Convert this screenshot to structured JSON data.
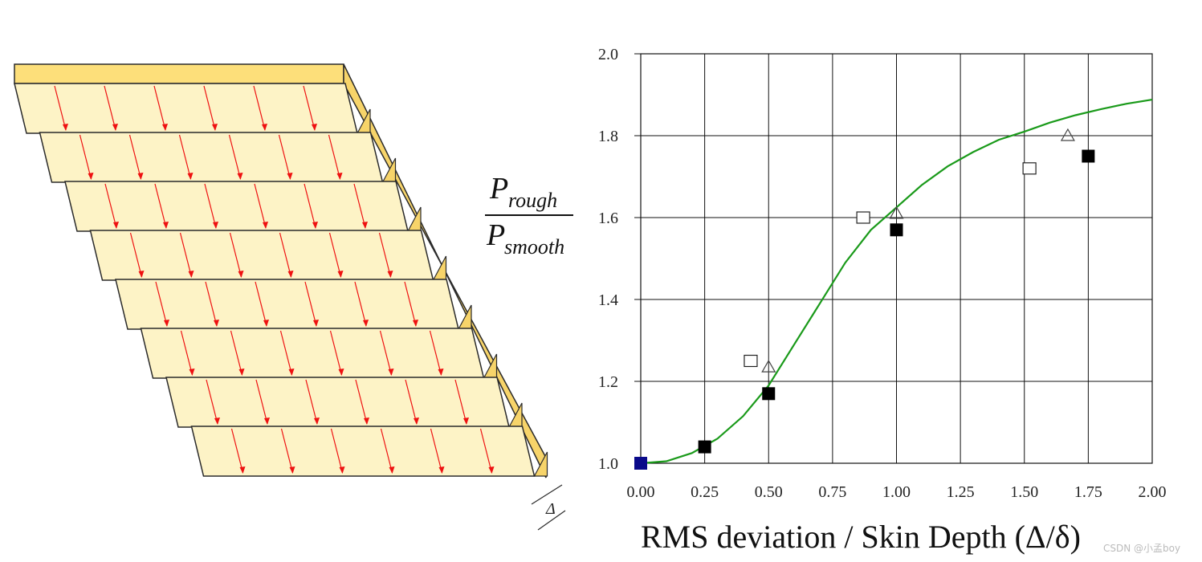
{
  "colors": {
    "face": "#fdf3c6",
    "top": "#fddf7a",
    "side": "#f7d46a",
    "edge": "#2a2a2a",
    "arrow": "#ee1111",
    "curve": "#1a9a1a",
    "origin_marker": "#0a0a8a",
    "grid": "#111111"
  },
  "illustration": {
    "layers": 8,
    "arrows_per_layer": 6,
    "delta_symbol": "Δ"
  },
  "y_axis_label": {
    "numerator": "P",
    "numerator_sub": "rough",
    "denominator": "P",
    "denominator_sub": "smooth"
  },
  "x_axis_label": "RMS deviation / Skin Depth (Δ/δ)",
  "watermark": "CSDN @小孟boy",
  "chart_data": {
    "type": "scatter",
    "title": "",
    "xlabel": "RMS deviation / Skin Depth (Δ/δ)",
    "ylabel": "P_rough / P_smooth",
    "xlim": [
      0,
      2.0
    ],
    "ylim": [
      1.0,
      2.0
    ],
    "grid": true,
    "x_ticks": [
      "0.00",
      "0.25",
      "0.50",
      "0.75",
      "1.00",
      "1.25",
      "1.50",
      "1.75",
      "2.00"
    ],
    "y_ticks": [
      "1.0",
      "1.2",
      "1.4",
      "1.6",
      "1.8",
      "2.0"
    ],
    "series": [
      {
        "marker": "line",
        "points": [
          [
            0.0,
            1.0
          ],
          [
            0.1,
            1.005
          ],
          [
            0.2,
            1.025
          ],
          [
            0.3,
            1.06
          ],
          [
            0.4,
            1.115
          ],
          [
            0.5,
            1.19
          ],
          [
            0.6,
            1.29
          ],
          [
            0.7,
            1.39
          ],
          [
            0.8,
            1.49
          ],
          [
            0.9,
            1.57
          ],
          [
            1.0,
            1.625
          ],
          [
            1.1,
            1.68
          ],
          [
            1.2,
            1.725
          ],
          [
            1.3,
            1.76
          ],
          [
            1.4,
            1.79
          ],
          [
            1.5,
            1.81
          ],
          [
            1.6,
            1.832
          ],
          [
            1.7,
            1.85
          ],
          [
            1.8,
            1.865
          ],
          [
            1.9,
            1.878
          ],
          [
            2.0,
            1.888
          ]
        ]
      },
      {
        "marker": "filled-square",
        "points": [
          [
            0.25,
            1.04
          ],
          [
            0.5,
            1.17
          ],
          [
            1.0,
            1.57
          ],
          [
            1.75,
            1.75
          ]
        ]
      },
      {
        "marker": "open-square",
        "points": [
          [
            0.43,
            1.25
          ],
          [
            0.87,
            1.6
          ],
          [
            1.52,
            1.72
          ]
        ]
      },
      {
        "marker": "open-triangle",
        "points": [
          [
            0.5,
            1.235
          ],
          [
            1.0,
            1.61
          ],
          [
            1.67,
            1.8
          ]
        ]
      },
      {
        "marker": "blue-square",
        "points": [
          [
            0.0,
            1.0
          ]
        ]
      }
    ]
  }
}
